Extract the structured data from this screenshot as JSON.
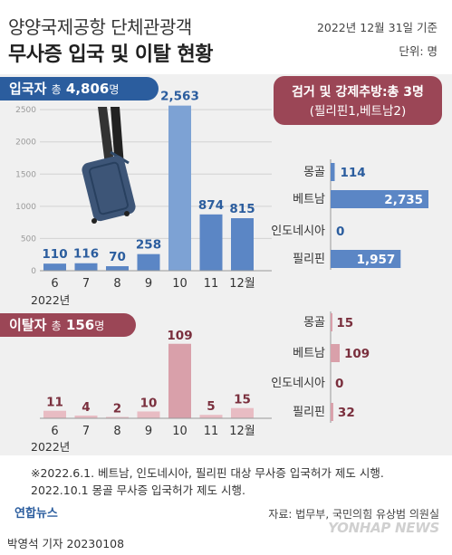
{
  "header": {
    "title_line1": "양양국제공항 단체관광객",
    "title_line2": "무사증 입국 및 이탈 현황",
    "date": "2022년 12월 31일 기준",
    "unit": "단위: 명"
  },
  "entry": {
    "tag_label": "입국자",
    "tag_prefix": "총",
    "tag_total": "4,806",
    "tag_unit": "명"
  },
  "exit": {
    "tag_label": "이탈자",
    "tag_prefix": "총",
    "tag_total": "156",
    "tag_unit": "명"
  },
  "colors": {
    "entry_bar": "#5b86c5",
    "entry_bar_highlight": "#7da2d4",
    "entry_text": "#2b5d9e",
    "exit_bar": "#e8bcc3",
    "exit_bar_highlight": "#d9a0aa",
    "exit_text": "#7a2f3d",
    "caught_box": "#9b4656"
  },
  "notes": [
    "※2022.6.1. 베트남, 인도네시아, 필리핀 대상 무사증 입국허가 제도 시행.",
    "2022.10.1 몽골 무사증 입국허가 제도 시행."
  ],
  "branding": {
    "logo_text": "연합뉴스",
    "source": "자료: 법무부, 국민의힘 유상범 의원실",
    "watermark": "YONHAP NEWS",
    "byline": "박영석 기자  20230108"
  },
  "chart_data": [
    {
      "type": "bar",
      "title": "입국자 총 4,806명",
      "categories": [
        "6",
        "7",
        "8",
        "9",
        "10",
        "11",
        "12월"
      ],
      "values": [
        110,
        116,
        70,
        258,
        2563,
        874,
        815
      ],
      "value_labels": [
        "110",
        "116",
        "70",
        "258",
        "2,563",
        "874",
        "815"
      ],
      "year_label": "2022년",
      "ylim": [
        0,
        2600
      ],
      "yticks": [
        0,
        500,
        1000,
        1500,
        2000,
        2500
      ],
      "grid": true
    },
    {
      "type": "bar",
      "title": "이탈자 총 156명",
      "categories": [
        "6",
        "7",
        "8",
        "9",
        "10",
        "11",
        "12월"
      ],
      "values": [
        11,
        4,
        2,
        10,
        109,
        5,
        15
      ],
      "value_labels": [
        "11",
        "4",
        "2",
        "10",
        "109",
        "5",
        "15"
      ],
      "year_label": "2022년",
      "ylim": [
        0,
        110
      ]
    },
    {
      "type": "bar",
      "orientation": "horizontal",
      "title": "검거 및 강제추방:총 3명",
      "subtitle": "(필리핀1,베트남2)",
      "categories": [
        "몽골",
        "베트남",
        "인도네시아",
        "필리핀"
      ],
      "values": [
        114,
        2735,
        0,
        1957
      ],
      "value_labels": [
        "114",
        "2,735",
        "0",
        "1,957"
      ]
    },
    {
      "type": "bar",
      "orientation": "horizontal",
      "categories": [
        "몽골",
        "베트남",
        "인도네시아",
        "필리핀"
      ],
      "values": [
        15,
        109,
        0,
        32
      ],
      "value_labels": [
        "15",
        "109",
        "0",
        "32"
      ]
    }
  ]
}
